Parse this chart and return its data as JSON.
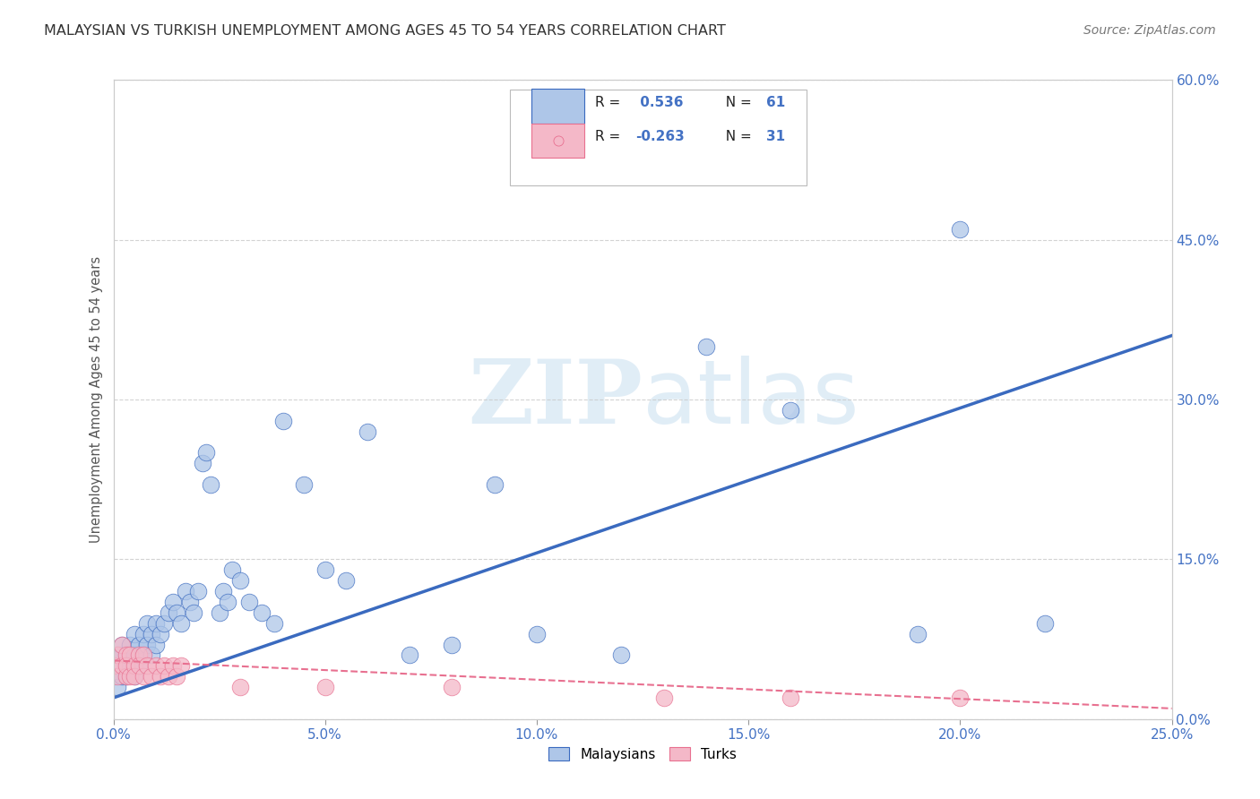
{
  "title": "MALAYSIAN VS TURKISH UNEMPLOYMENT AMONG AGES 45 TO 54 YEARS CORRELATION CHART",
  "source": "Source: ZipAtlas.com",
  "ylabel": "Unemployment Among Ages 45 to 54 years",
  "watermark_zip": "ZIP",
  "watermark_atlas": "atlas",
  "r_malaysian": 0.536,
  "n_malaysian": 61,
  "r_turkish": -0.263,
  "n_turkish": 31,
  "malaysian_color": "#aec6e8",
  "turkish_color": "#f4b8c8",
  "line_malaysian_color": "#3a6abf",
  "line_turkish_color": "#e87090",
  "background_color": "#ffffff",
  "xlim": [
    0,
    0.25
  ],
  "ylim": [
    0,
    0.6
  ],
  "yticks": [
    0.0,
    0.15,
    0.3,
    0.45,
    0.6
  ],
  "xticks": [
    0.0,
    0.05,
    0.1,
    0.15,
    0.2,
    0.25
  ],
  "mal_x": [
    0.0,
    0.001,
    0.001,
    0.001,
    0.002,
    0.002,
    0.002,
    0.003,
    0.003,
    0.003,
    0.004,
    0.004,
    0.005,
    0.005,
    0.005,
    0.006,
    0.006,
    0.007,
    0.007,
    0.008,
    0.008,
    0.009,
    0.009,
    0.01,
    0.01,
    0.011,
    0.012,
    0.013,
    0.014,
    0.015,
    0.016,
    0.017,
    0.018,
    0.019,
    0.02,
    0.021,
    0.022,
    0.023,
    0.025,
    0.026,
    0.027,
    0.028,
    0.03,
    0.032,
    0.035,
    0.038,
    0.04,
    0.045,
    0.05,
    0.055,
    0.06,
    0.07,
    0.08,
    0.09,
    0.1,
    0.12,
    0.14,
    0.16,
    0.19,
    0.2,
    0.22
  ],
  "mal_y": [
    0.04,
    0.03,
    0.05,
    0.06,
    0.04,
    0.06,
    0.07,
    0.05,
    0.04,
    0.06,
    0.05,
    0.07,
    0.04,
    0.06,
    0.08,
    0.05,
    0.07,
    0.06,
    0.08,
    0.07,
    0.09,
    0.06,
    0.08,
    0.07,
    0.09,
    0.08,
    0.09,
    0.1,
    0.11,
    0.1,
    0.09,
    0.12,
    0.11,
    0.1,
    0.12,
    0.24,
    0.25,
    0.22,
    0.1,
    0.12,
    0.11,
    0.14,
    0.13,
    0.11,
    0.1,
    0.09,
    0.28,
    0.22,
    0.14,
    0.13,
    0.27,
    0.06,
    0.07,
    0.22,
    0.08,
    0.06,
    0.35,
    0.29,
    0.08,
    0.46,
    0.09
  ],
  "turk_x": [
    0.0,
    0.001,
    0.001,
    0.002,
    0.002,
    0.003,
    0.003,
    0.003,
    0.004,
    0.004,
    0.005,
    0.005,
    0.006,
    0.006,
    0.007,
    0.007,
    0.008,
    0.009,
    0.01,
    0.011,
    0.012,
    0.013,
    0.014,
    0.015,
    0.016,
    0.03,
    0.05,
    0.08,
    0.13,
    0.16,
    0.2
  ],
  "turk_y": [
    0.05,
    0.04,
    0.06,
    0.05,
    0.07,
    0.04,
    0.06,
    0.05,
    0.04,
    0.06,
    0.05,
    0.04,
    0.06,
    0.05,
    0.06,
    0.04,
    0.05,
    0.04,
    0.05,
    0.04,
    0.05,
    0.04,
    0.05,
    0.04,
    0.05,
    0.03,
    0.03,
    0.03,
    0.02,
    0.02,
    0.02
  ],
  "mal_line_x": [
    0.0,
    0.25
  ],
  "mal_line_y": [
    0.02,
    0.36
  ],
  "turk_line_x": [
    0.0,
    0.25
  ],
  "turk_line_y": [
    0.055,
    0.01
  ]
}
